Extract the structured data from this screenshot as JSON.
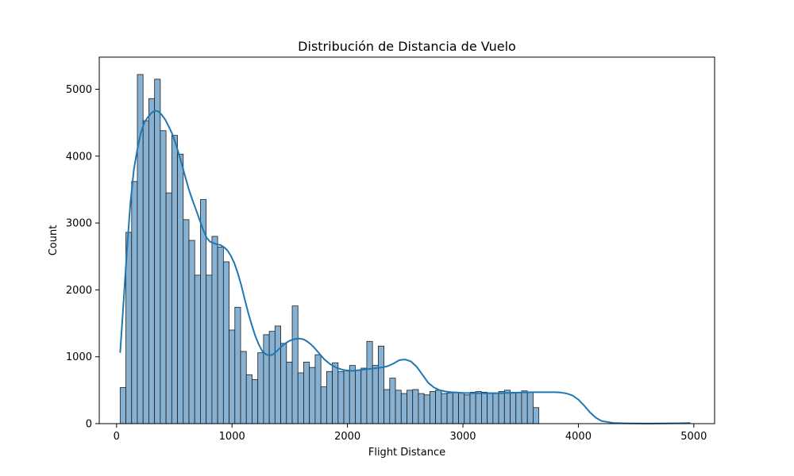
{
  "chart_data": {
    "type": "bar",
    "title": "Distribución de Distancia de Vuelo",
    "xlabel": "Flight Distance",
    "ylabel": "Count",
    "xlim": [
      -150,
      5180
    ],
    "ylim": [
      0,
      5480
    ],
    "x_ticks": [
      0,
      1000,
      2000,
      3000,
      4000,
      5000
    ],
    "y_ticks": [
      0,
      1000,
      2000,
      3000,
      4000,
      5000
    ],
    "grid": false,
    "colors": {
      "bar_fill": "#86b1d3",
      "bar_edge": "#1f1f1f",
      "kde_line": "#1f77b4",
      "axes": "#000000"
    },
    "histogram": {
      "bin_start": 31,
      "bin_width": 49.68,
      "counts": [
        540,
        2860,
        3620,
        5220,
        4530,
        4860,
        5150,
        4380,
        3450,
        4310,
        4030,
        3050,
        2740,
        2220,
        3350,
        2220,
        2800,
        2640,
        2420,
        1400,
        1740,
        1080,
        730,
        660,
        1060,
        1330,
        1380,
        1460,
        1200,
        920,
        1760,
        760,
        920,
        840,
        1030,
        550,
        780,
        910,
        780,
        800,
        870,
        800,
        830,
        1230,
        870,
        1160,
        510,
        680,
        500,
        450,
        500,
        510,
        450,
        430,
        480,
        500,
        450,
        460,
        470,
        460,
        430,
        470,
        480,
        470,
        460,
        460,
        480,
        500,
        470,
        470,
        490,
        470,
        240
      ]
    },
    "kde": {
      "x": [
        31,
        60,
        90,
        120,
        150,
        180,
        210,
        240,
        270,
        300,
        330,
        360,
        390,
        420,
        450,
        480,
        510,
        540,
        570,
        600,
        630,
        660,
        690,
        720,
        750,
        780,
        810,
        840,
        870,
        900,
        930,
        960,
        990,
        1020,
        1050,
        1080,
        1110,
        1140,
        1170,
        1200,
        1230,
        1260,
        1290,
        1320,
        1350,
        1380,
        1410,
        1440,
        1470,
        1500,
        1530,
        1560,
        1590,
        1620,
        1650,
        1680,
        1710,
        1740,
        1770,
        1800,
        1850,
        1900,
        1950,
        2000,
        2050,
        2100,
        2150,
        2200,
        2250,
        2300,
        2350,
        2400,
        2450,
        2500,
        2550,
        2600,
        2650,
        2700,
        2750,
        2800,
        2850,
        2900,
        2950,
        3000,
        3100,
        3200,
        3300,
        3400,
        3500,
        3600,
        3700,
        3800,
        3850,
        3900,
        3950,
        4000,
        4050,
        4100,
        4150,
        4200,
        4300,
        4400,
        4500,
        4600,
        4700,
        4800,
        4900,
        4970
      ],
      "y": [
        1060,
        1800,
        2600,
        3300,
        3800,
        4100,
        4350,
        4500,
        4580,
        4640,
        4680,
        4670,
        4620,
        4550,
        4450,
        4340,
        4200,
        4030,
        3850,
        3660,
        3480,
        3330,
        3190,
        3040,
        2900,
        2780,
        2720,
        2700,
        2680,
        2670,
        2640,
        2590,
        2510,
        2400,
        2250,
        2070,
        1860,
        1660,
        1480,
        1320,
        1190,
        1090,
        1040,
        1020,
        1030,
        1070,
        1120,
        1170,
        1210,
        1240,
        1260,
        1270,
        1270,
        1260,
        1230,
        1190,
        1140,
        1080,
        1020,
        960,
        890,
        840,
        810,
        790,
        790,
        800,
        810,
        820,
        830,
        840,
        860,
        900,
        950,
        960,
        930,
        850,
        730,
        610,
        540,
        500,
        480,
        470,
        465,
        460,
        455,
        455,
        455,
        460,
        465,
        470,
        470,
        470,
        465,
        450,
        420,
        360,
        270,
        170,
        90,
        40,
        10,
        5,
        3,
        2,
        3,
        4,
        6,
        10
      ]
    }
  }
}
